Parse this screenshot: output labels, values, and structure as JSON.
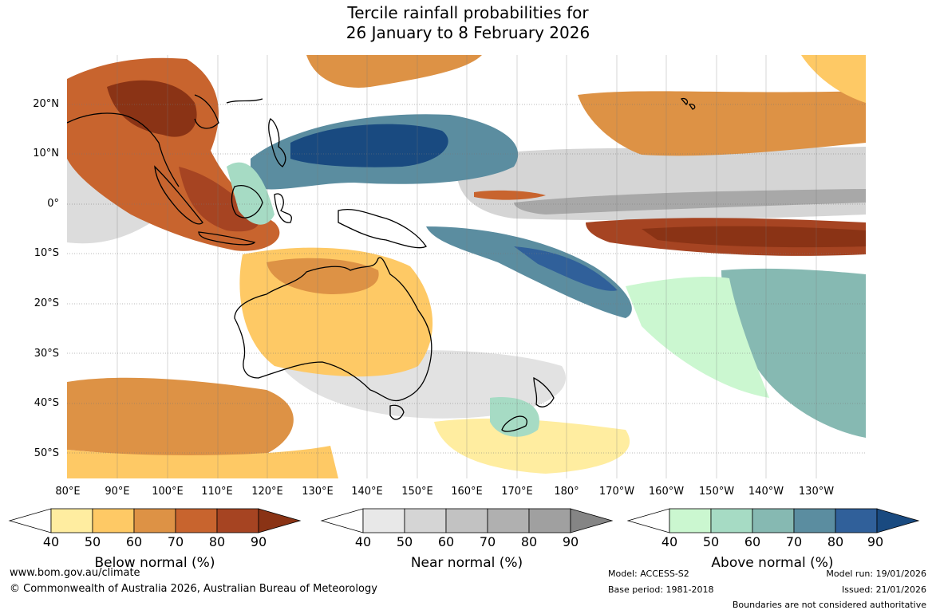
{
  "title_line1": "Tercile rainfall probabilities for",
  "title_line2": "26 January to 8 February 2026",
  "lat_labels": [
    "20°N",
    "10°N",
    "0°",
    "10°S",
    "20°S",
    "30°S",
    "40°S",
    "50°S"
  ],
  "lon_labels": [
    "80°E",
    "90°E",
    "100°E",
    "110°E",
    "120°E",
    "130°E",
    "140°E",
    "150°E",
    "160°E",
    "170°E",
    "180°",
    "170°W",
    "160°W",
    "150°W",
    "140°W",
    "130°W"
  ],
  "legends": {
    "below": {
      "title": "Below normal (%)",
      "ticks": [
        "40",
        "50",
        "60",
        "70",
        "80",
        "90"
      ],
      "colors": [
        "#ffeda0",
        "#fec965",
        "#dd9245",
        "#c8642e",
        "#a64422",
        "#8a3315"
      ]
    },
    "near": {
      "title": "Near normal (%)",
      "ticks": [
        "40",
        "50",
        "60",
        "70",
        "80",
        "90"
      ],
      "colors": [
        "#e8e8e8",
        "#d5d5d5",
        "#c2c2c2",
        "#b0b0b0",
        "#a0a0a0",
        "#858585"
      ]
    },
    "above": {
      "title": "Above normal (%)",
      "ticks": [
        "40",
        "50",
        "60",
        "70",
        "80",
        "90"
      ],
      "colors": [
        "#cbf7d0",
        "#a6dbc4",
        "#86b9b2",
        "#5b8da0",
        "#30609a",
        "#194a80"
      ]
    }
  },
  "footer": {
    "website": "www.bom.gov.au/climate",
    "copyright": "© Commonwealth of Australia 2026, Australian Bureau of Meteorology",
    "model": "Model: ACCESS-S2",
    "base_period": "Base period: 1981-2018",
    "model_run": "Model run: 19/01/2026",
    "issued": "Issued: 21/01/2026",
    "boundaries": "Boundaries are not considered authoritative"
  }
}
